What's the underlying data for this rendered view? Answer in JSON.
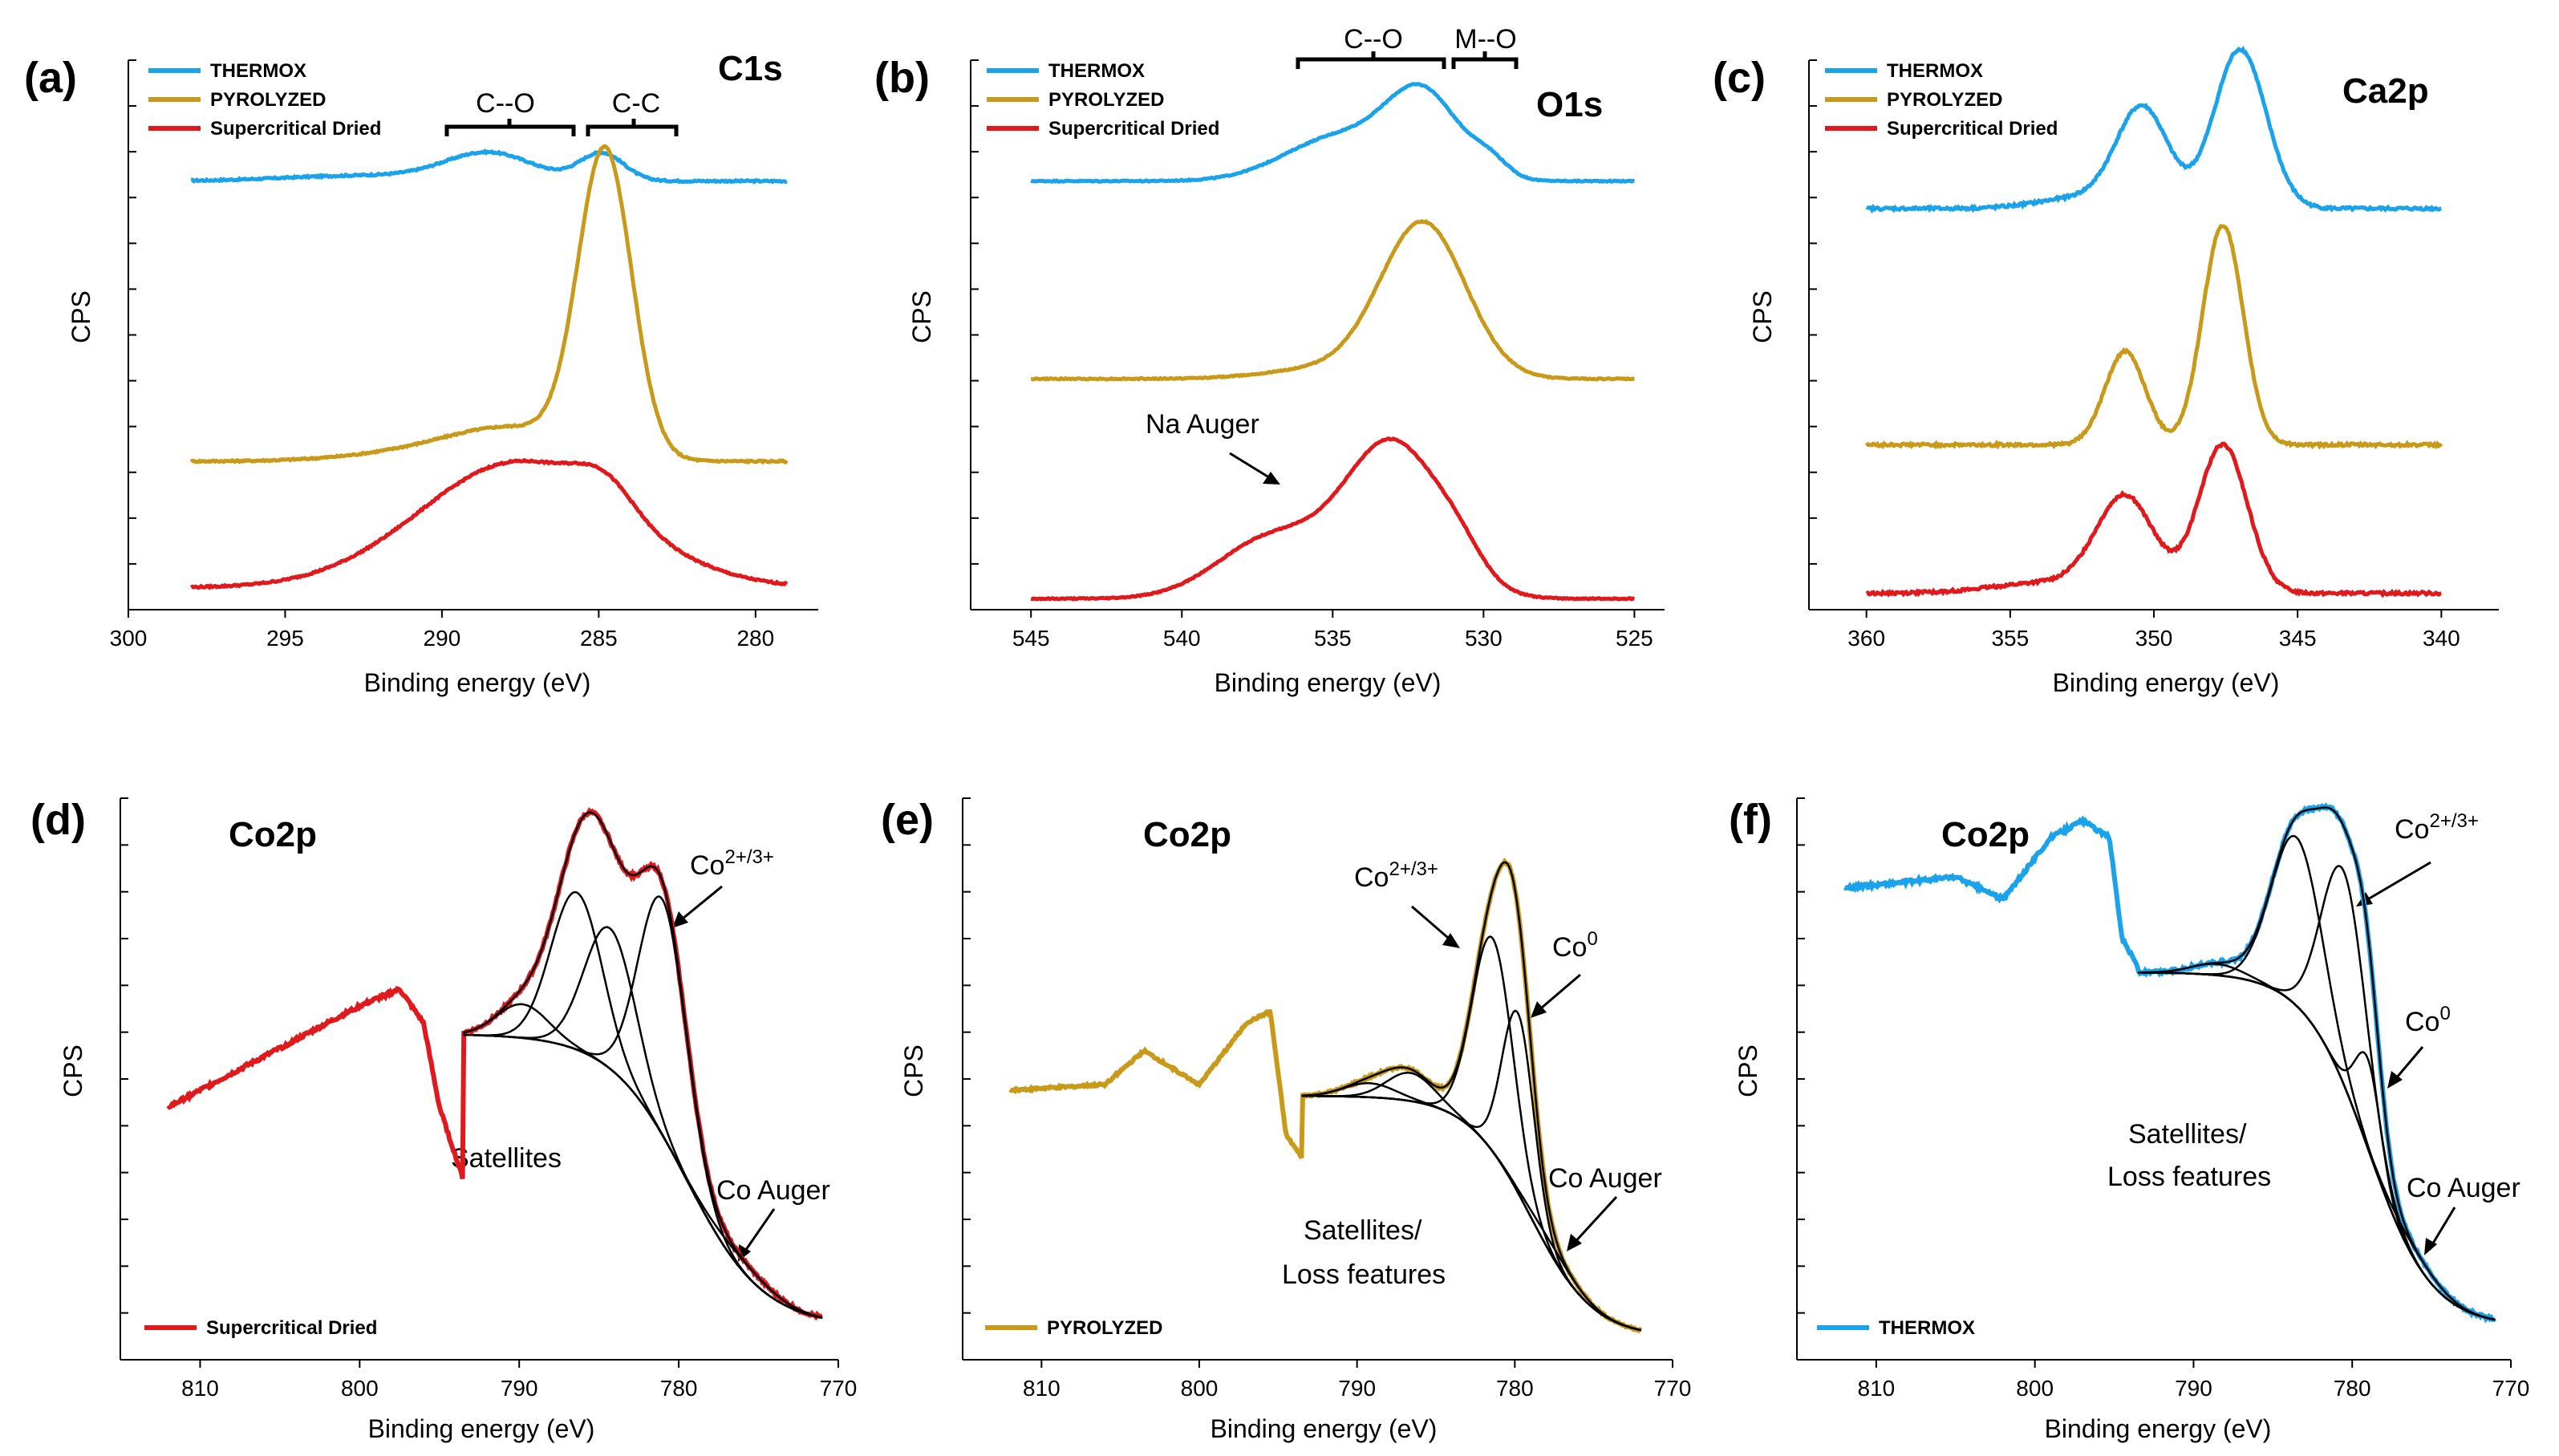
{
  "figure": {
    "colors": {
      "THERMOX": "#1aa3ea",
      "PYROLYZED": "#c99a1a",
      "Supercritical Dried": "#e0191c",
      "fit": "#000000"
    }
  },
  "chart_data": [
    {
      "id": "a",
      "panel_label": "(a)",
      "type": "line",
      "title": "C1s",
      "xlabel": "Binding energy (eV)",
      "ylabel": "CPS",
      "xlim": [
        300,
        278
      ],
      "xticks": [
        "300",
        "295",
        "290",
        "285",
        "280"
      ],
      "legend": [
        "THERMOX",
        "PYROLYZED",
        "Supercritical Dried"
      ],
      "brackets": [
        {
          "label": "C--O",
          "from": 290,
          "to": 286
        },
        {
          "label": "C-C",
          "from": 285.5,
          "to": 283
        }
      ],
      "series": [
        {
          "name": "THERMOX",
          "x_range": [
            298,
            279
          ],
          "offset": 0.78,
          "noise": 0.003,
          "peaks": [
            [
              288.5,
              1.4,
              0.05
            ],
            [
              284.9,
              0.7,
              0.05
            ],
            [
              292.5,
              2.5,
              0.01
            ]
          ]
        },
        {
          "name": "PYROLYZED",
          "x_range": [
            298,
            279
          ],
          "offset": 0.27,
          "noise": 0.003,
          "peaks": [
            [
              284.8,
              0.85,
              0.55
            ],
            [
              287.5,
              2.0,
              0.05
            ],
            [
              290.0,
              2.5,
              0.02
            ]
          ]
        },
        {
          "name": "Supercritical Dried",
          "x_range": [
            298,
            279
          ],
          "offset": 0.04,
          "noise": 0.003,
          "peaks": [
            [
              287.5,
              3.2,
              0.23
            ],
            [
              284.8,
              0.9,
              0.05
            ]
          ]
        }
      ]
    },
    {
      "id": "b",
      "panel_label": "(b)",
      "type": "line",
      "title": "O1s",
      "xlabel": "Binding energy (eV)",
      "ylabel": "CPS",
      "xlim": [
        547,
        524
      ],
      "xticks": [
        "545",
        "540",
        "535",
        "530",
        "525"
      ],
      "legend": [
        "THERMOX",
        "PYROLYZED",
        "Supercritical Dried"
      ],
      "brackets": [
        {
          "label": "C--O",
          "from": 536,
          "to": 531
        },
        {
          "label": "M--O",
          "from": 530.5,
          "to": 528
        }
      ],
      "annotations": [
        {
          "text": "Na Auger"
        }
      ],
      "series": [
        {
          "name": "THERMOX",
          "x_range": [
            545,
            525
          ],
          "offset": 0.78,
          "noise": 0.002,
          "peaks": [
            [
              532.0,
              1.2,
              0.15
            ],
            [
              534.8,
              1.8,
              0.08
            ],
            [
              529.8,
              0.6,
              0.03
            ]
          ]
        },
        {
          "name": "PYROLYZED",
          "x_range": [
            545,
            525
          ],
          "offset": 0.42,
          "noise": 0.002,
          "peaks": [
            [
              532.0,
              1.4,
              0.28
            ],
            [
              535.0,
              2.0,
              0.02
            ]
          ]
        },
        {
          "name": "Supercritical Dried",
          "x_range": [
            545,
            525
          ],
          "offset": 0.02,
          "noise": 0.002,
          "peaks": [
            [
              533.0,
              1.6,
              0.28
            ],
            [
              537.0,
              1.8,
              0.11
            ],
            [
              530.8,
              0.8,
              0.04
            ]
          ]
        }
      ]
    },
    {
      "id": "c",
      "panel_label": "(c)",
      "type": "line",
      "title": "Ca2p",
      "xlabel": "Binding energy (eV)",
      "ylabel": "CPS",
      "xlim": [
        362,
        338
      ],
      "xticks": [
        "360",
        "355",
        "350",
        "345",
        "340"
      ],
      "legend": [
        "THERMOX",
        "PYROLYZED",
        "Supercritical Dried"
      ],
      "series": [
        {
          "name": "THERMOX",
          "x_range": [
            360,
            340
          ],
          "offset": 0.73,
          "noise": 0.005,
          "peaks": [
            [
              350.4,
              0.9,
              0.18
            ],
            [
              347.0,
              0.9,
              0.29
            ],
            [
              352.5,
              1.5,
              0.02
            ]
          ]
        },
        {
          "name": "PYROLYZED",
          "x_range": [
            360,
            340
          ],
          "offset": 0.3,
          "noise": 0.005,
          "peaks": [
            [
              351.0,
              0.7,
              0.17
            ],
            [
              347.6,
              0.7,
              0.4
            ]
          ]
        },
        {
          "name": "Supercritical Dried",
          "x_range": [
            360,
            340
          ],
          "offset": 0.03,
          "noise": 0.005,
          "peaks": [
            [
              351.0,
              1.0,
              0.17
            ],
            [
              347.6,
              0.85,
              0.27
            ],
            [
              353.5,
              2.0,
              0.02
            ]
          ]
        }
      ]
    },
    {
      "id": "d",
      "panel_label": "(d)",
      "type": "line",
      "title": "Co2p",
      "xlabel": "Binding energy (eV)",
      "ylabel": "CPS",
      "xlim": [
        815,
        770
      ],
      "xticks": [
        "810",
        "800",
        "790",
        "780",
        "770"
      ],
      "legend": [
        "Supercritical Dried"
      ],
      "annotations": [
        {
          "text": "Co",
          "sup": "2+/3+"
        },
        {
          "text": "Satellites"
        },
        {
          "text": "Co Auger"
        }
      ],
      "series": [
        {
          "name": "Supercritical Dried",
          "x_range": [
            812,
            771
          ],
          "noise": 0.006
        }
      ],
      "fit_components": [
        [
          781,
          1.5,
          0.42
        ],
        [
          784.3,
          1.6,
          0.25
        ],
        [
          786.4,
          1.6,
          0.28
        ],
        [
          789.8,
          1.6,
          0.06
        ],
        [
          776,
          1.8,
          0.02
        ]
      ]
    },
    {
      "id": "e",
      "panel_label": "(e)",
      "type": "line",
      "title": "Co2p",
      "xlabel": "Binding energy (eV)",
      "ylabel": "CPS",
      "xlim": [
        815,
        770
      ],
      "xticks": [
        "810",
        "800",
        "790",
        "780",
        "770"
      ],
      "legend": [
        "PYROLYZED"
      ],
      "annotations": [
        {
          "text": "Co",
          "sup": "2+/3+"
        },
        {
          "text": "Co",
          "sup": "0"
        },
        {
          "text": "Satellites/"
        },
        {
          "text": "Loss features"
        },
        {
          "text": "Co Auger"
        }
      ],
      "series": [
        {
          "name": "PYROLYZED",
          "x_range": [
            812,
            772
          ],
          "noise": 0.004
        }
      ],
      "fit_components": [
        [
          781.4,
          1.3,
          0.38
        ],
        [
          779.8,
          1.0,
          0.32
        ],
        [
          786.6,
          1.5,
          0.05
        ],
        [
          789.2,
          1.6,
          0.025
        ],
        [
          777.5,
          1.5,
          0.02
        ]
      ]
    },
    {
      "id": "f",
      "panel_label": "(f)",
      "type": "line",
      "title": "Co2p",
      "xlabel": "Binding energy (eV)",
      "ylabel": "CPS",
      "xlim": [
        815,
        770
      ],
      "xticks": [
        "810",
        "800",
        "790",
        "780",
        "770"
      ],
      "legend": [
        "THERMOX"
      ],
      "annotations": [
        {
          "text": "Co",
          "sup": "2+/3+"
        },
        {
          "text": "Co",
          "sup": "0"
        },
        {
          "text": "Satellites/"
        },
        {
          "text": "Loss features"
        },
        {
          "text": "Co Auger"
        }
      ],
      "series": [
        {
          "name": "THERMOX",
          "x_range": [
            812,
            771
          ],
          "noise": 0.006
        }
      ],
      "fit_components": [
        [
          780.5,
          1.4,
          0.38
        ],
        [
          783.5,
          1.6,
          0.3
        ],
        [
          779.0,
          0.8,
          0.16
        ],
        [
          788.5,
          1.6,
          0.02
        ],
        [
          776.0,
          1.5,
          0.02
        ]
      ]
    }
  ]
}
